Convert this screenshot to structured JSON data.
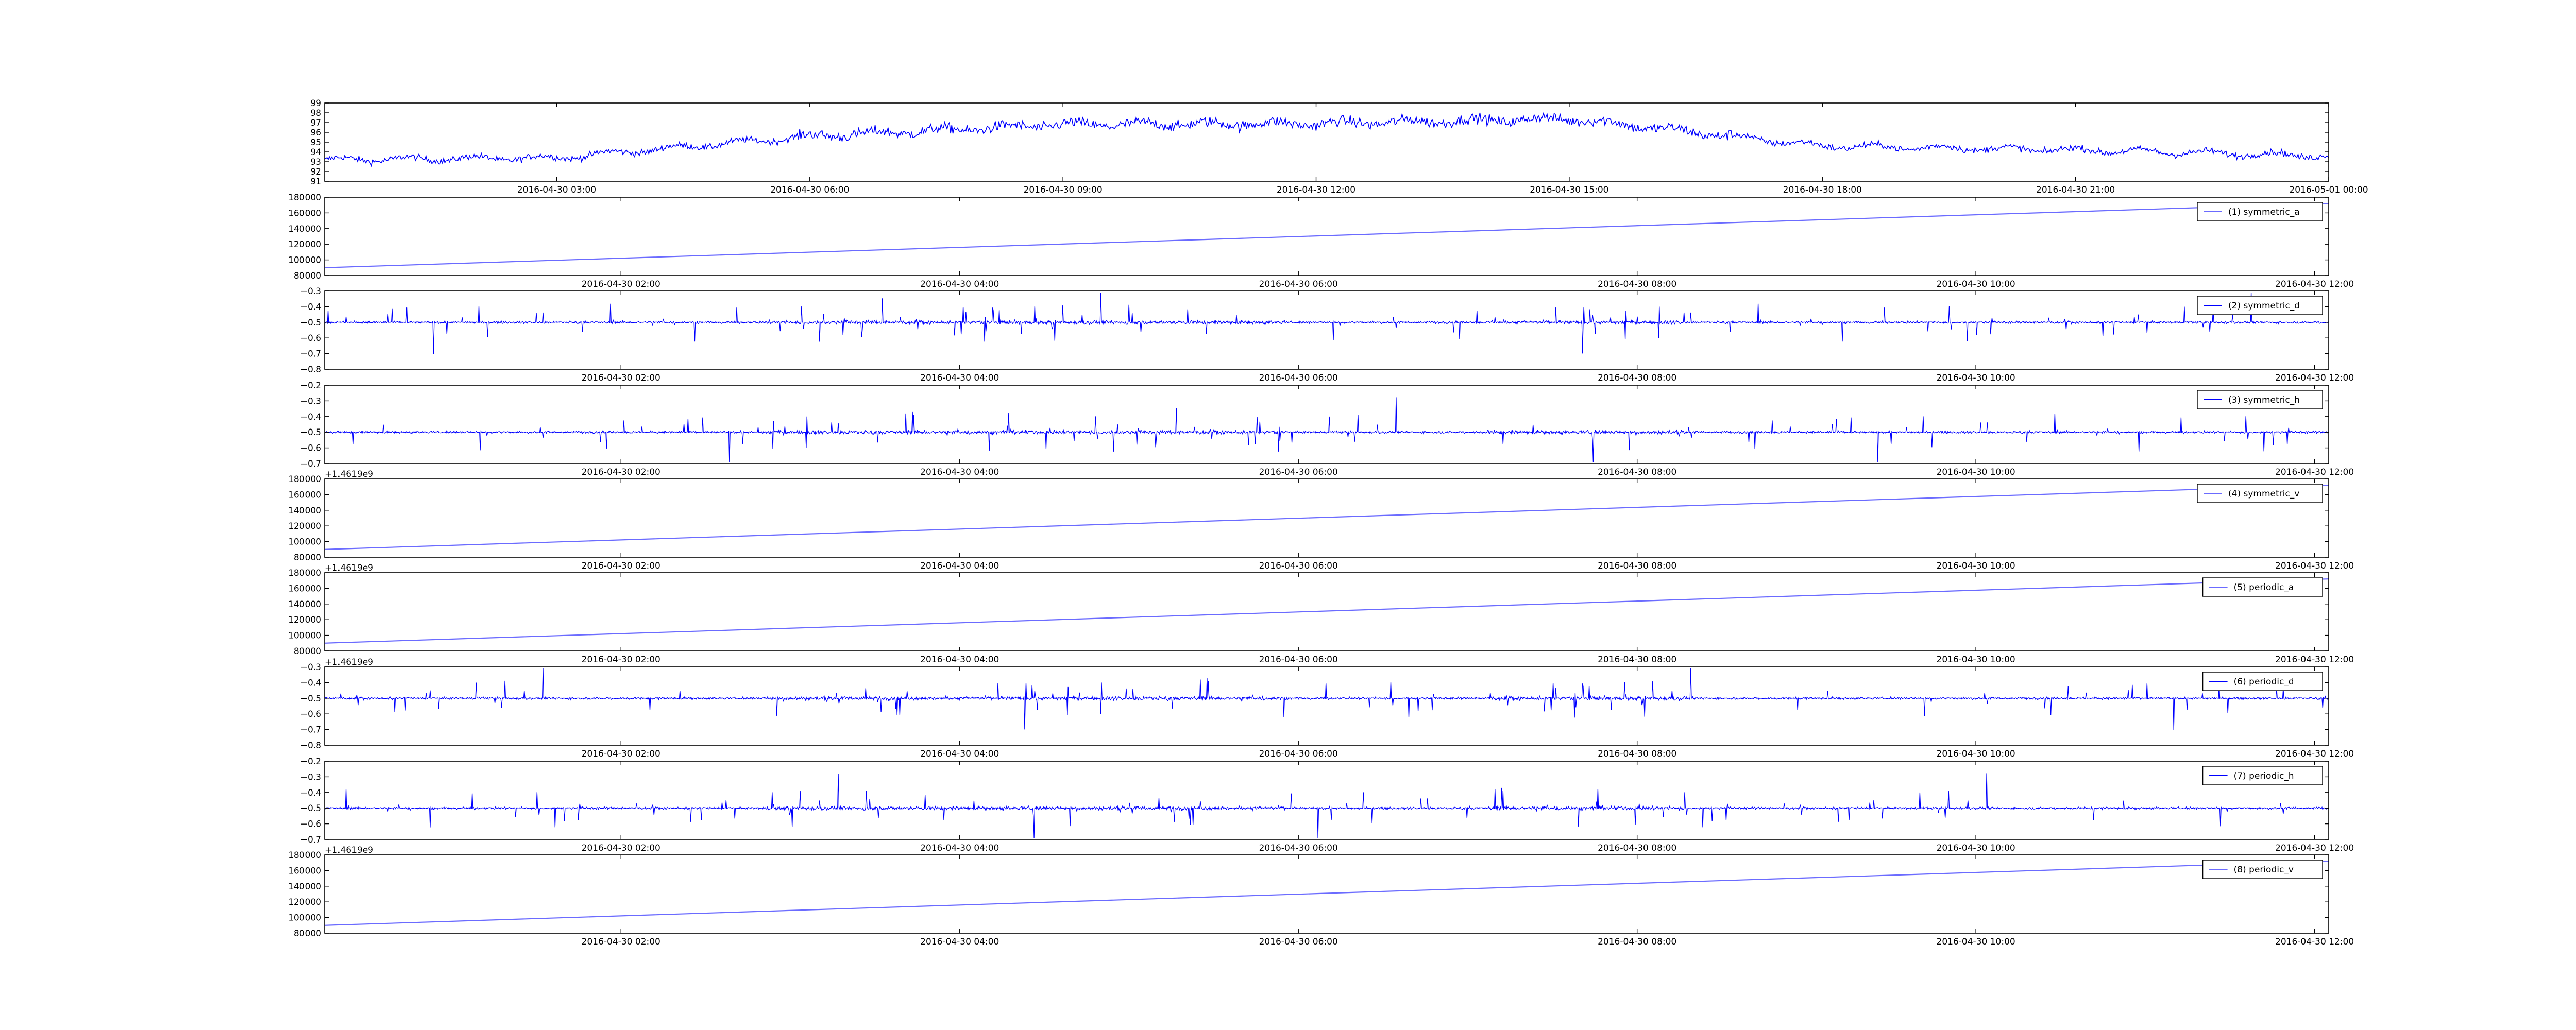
{
  "figure": {
    "background": "#ffffff",
    "line_color": "#0000ff",
    "line_color_light": "#6b6bff"
  },
  "chart_data": [
    {
      "type": "line",
      "title": "",
      "xlabel": "",
      "ylabel": "",
      "ylim": [
        91,
        99
      ],
      "yticks": [
        "91",
        "92",
        "93",
        "94",
        "95",
        "96",
        "97",
        "98",
        "99"
      ],
      "xticks": [
        "2016-04-30 03:00",
        "2016-04-30 06:00",
        "2016-04-30 09:00",
        "2016-04-30 12:00",
        "2016-04-30 15:00",
        "2016-04-30 18:00",
        "2016-04-30 21:00",
        "2016-05-01 00:00"
      ],
      "x_range": [
        "2016-04-30 00:15",
        "2016-05-01 00:00"
      ],
      "legend": "none",
      "series": [
        {
          "x": [
            "2016-04-30 00:15",
            "2016-04-30 03:00",
            "2016-04-30 06:00",
            "2016-04-30 09:00",
            "2016-04-30 12:00",
            "2016-04-30 15:00",
            "2016-04-30 18:00",
            "2016-04-30 21:00",
            "2016-05-01 00:00"
          ],
          "values": [
            93.2,
            93.4,
            95.6,
            96.8,
            96.9,
            97.4,
            94.6,
            94.2,
            93.6
          ]
        }
      ],
      "signal": "noisy"
    },
    {
      "type": "line",
      "offset_text": "",
      "ylim": [
        80000,
        180000
      ],
      "yticks": [
        "80000",
        "100000",
        "120000",
        "140000",
        "160000",
        "180000"
      ],
      "xticks": [
        "2016-04-30 02:00",
        "2016-04-30 04:00",
        "2016-04-30 06:00",
        "2016-04-30 08:00",
        "2016-04-30 10:00",
        "2016-04-30 12:00"
      ],
      "x_range": [
        "2016-04-30 00:15",
        "2016-04-30 12:05"
      ],
      "legend": "top-right",
      "series": [
        {
          "name": "(1) symmetric_a",
          "x": [
            "2016-04-30 00:15",
            "2016-04-30 12:05"
          ],
          "values": [
            90000,
            172000
          ]
        }
      ],
      "signal": "linear"
    },
    {
      "type": "line",
      "offset_text": "",
      "ylim": [
        -0.8,
        -0.3
      ],
      "yticks": [
        "−0.8",
        "−0.7",
        "−0.6",
        "−0.5",
        "−0.4",
        "−0.3"
      ],
      "xticks": [
        "2016-04-30 02:00",
        "2016-04-30 04:00",
        "2016-04-30 06:00",
        "2016-04-30 08:00",
        "2016-04-30 10:00",
        "2016-04-30 12:00"
      ],
      "x_range": [
        "2016-04-30 00:15",
        "2016-04-30 12:05"
      ],
      "legend": "top-right",
      "series": [
        {
          "name": "(2) symmetric_d",
          "x": [
            "2016-04-30 00:15",
            "2016-04-30 12:05"
          ],
          "values": [
            -0.5,
            -0.5
          ]
        }
      ],
      "signal": "spiky"
    },
    {
      "type": "line",
      "offset_text": "",
      "ylim": [
        -0.7,
        -0.2
      ],
      "yticks": [
        "−0.7",
        "−0.6",
        "−0.5",
        "−0.4",
        "−0.3",
        "−0.2"
      ],
      "xticks": [
        "2016-04-30 02:00",
        "2016-04-30 04:00",
        "2016-04-30 06:00",
        "2016-04-30 08:00",
        "2016-04-30 10:00",
        "2016-04-30 12:00"
      ],
      "x_range": [
        "2016-04-30 00:15",
        "2016-04-30 12:05"
      ],
      "legend": "top-right",
      "series": [
        {
          "name": "(3) symmetric_h",
          "x": [
            "2016-04-30 00:15",
            "2016-04-30 12:05"
          ],
          "values": [
            -0.5,
            -0.5
          ]
        }
      ],
      "signal": "spiky"
    },
    {
      "type": "line",
      "offset_text": "+1.4619e9",
      "ylim": [
        80000,
        180000
      ],
      "yticks": [
        "80000",
        "100000",
        "120000",
        "140000",
        "160000",
        "180000"
      ],
      "xticks": [
        "2016-04-30 02:00",
        "2016-04-30 04:00",
        "2016-04-30 06:00",
        "2016-04-30 08:00",
        "2016-04-30 10:00",
        "2016-04-30 12:00"
      ],
      "x_range": [
        "2016-04-30 00:15",
        "2016-04-30 12:05"
      ],
      "legend": "top-right",
      "series": [
        {
          "name": "(4) symmetric_v",
          "x": [
            "2016-04-30 00:15",
            "2016-04-30 12:05"
          ],
          "values": [
            90000,
            172000
          ]
        }
      ],
      "signal": "linear"
    },
    {
      "type": "line",
      "offset_text": "+1.4619e9",
      "ylim": [
        80000,
        180000
      ],
      "yticks": [
        "80000",
        "100000",
        "120000",
        "140000",
        "160000",
        "180000"
      ],
      "xticks": [
        "2016-04-30 02:00",
        "2016-04-30 04:00",
        "2016-04-30 06:00",
        "2016-04-30 08:00",
        "2016-04-30 10:00",
        "2016-04-30 12:00"
      ],
      "x_range": [
        "2016-04-30 00:15",
        "2016-04-30 12:05"
      ],
      "legend": "top-right",
      "series": [
        {
          "name": "(5) periodic_a",
          "x": [
            "2016-04-30 00:15",
            "2016-04-30 12:05"
          ],
          "values": [
            90000,
            172000
          ]
        }
      ],
      "signal": "linear"
    },
    {
      "type": "line",
      "offset_text": "+1.4619e9",
      "ylim": [
        -0.8,
        -0.3
      ],
      "yticks": [
        "−0.8",
        "−0.7",
        "−0.6",
        "−0.5",
        "−0.4",
        "−0.3"
      ],
      "xticks": [
        "2016-04-30 02:00",
        "2016-04-30 04:00",
        "2016-04-30 06:00",
        "2016-04-30 08:00",
        "2016-04-30 10:00",
        "2016-04-30 12:00"
      ],
      "x_range": [
        "2016-04-30 00:15",
        "2016-04-30 12:05"
      ],
      "legend": "top-right",
      "series": [
        {
          "name": "(6) periodic_d",
          "x": [
            "2016-04-30 00:15",
            "2016-04-30 12:05"
          ],
          "values": [
            -0.5,
            -0.5
          ]
        }
      ],
      "signal": "spiky"
    },
    {
      "type": "line",
      "offset_text": "",
      "ylim": [
        -0.7,
        -0.2
      ],
      "yticks": [
        "−0.7",
        "−0.6",
        "−0.5",
        "−0.4",
        "−0.3",
        "−0.2"
      ],
      "xticks": [
        "2016-04-30 02:00",
        "2016-04-30 04:00",
        "2016-04-30 06:00",
        "2016-04-30 08:00",
        "2016-04-30 10:00",
        "2016-04-30 12:00"
      ],
      "x_range": [
        "2016-04-30 00:15",
        "2016-04-30 12:05"
      ],
      "legend": "top-right",
      "series": [
        {
          "name": "(7) periodic_h",
          "x": [
            "2016-04-30 00:15",
            "2016-04-30 12:05"
          ],
          "values": [
            -0.5,
            -0.5
          ]
        }
      ],
      "signal": "spiky"
    },
    {
      "type": "line",
      "offset_text": "+1.4619e9",
      "ylim": [
        80000,
        180000
      ],
      "yticks": [
        "80000",
        "100000",
        "120000",
        "140000",
        "160000",
        "180000"
      ],
      "xticks": [
        "2016-04-30 02:00",
        "2016-04-30 04:00",
        "2016-04-30 06:00",
        "2016-04-30 08:00",
        "2016-04-30 10:00",
        "2016-04-30 12:00"
      ],
      "x_range": [
        "2016-04-30 00:15",
        "2016-04-30 12:05"
      ],
      "legend": "top-right",
      "series": [
        {
          "name": "(8) periodic_v",
          "x": [
            "2016-04-30 00:15",
            "2016-04-30 12:05"
          ],
          "values": [
            90000,
            172000
          ]
        }
      ],
      "signal": "linear"
    }
  ],
  "offset_labels": [
    "+1.4619e9",
    "+1.4619e9",
    "+1.4619e9",
    "+1.4619e9"
  ]
}
